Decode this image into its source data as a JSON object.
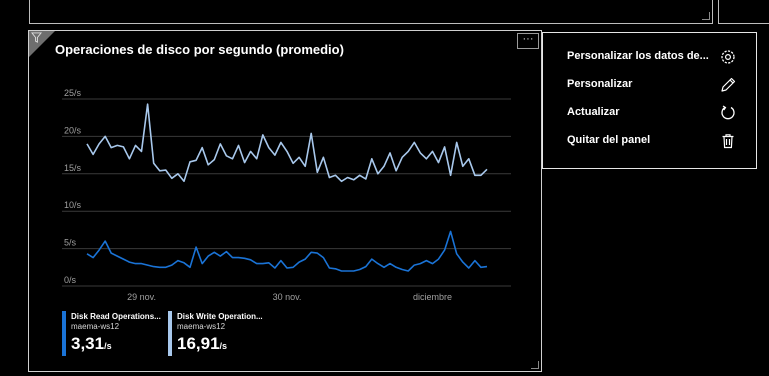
{
  "panel": {
    "title": "Operaciones de disco por segundo (promedio)",
    "more_label": "···",
    "icons": {
      "filter": "filter-icon",
      "more": "more-options-icon"
    }
  },
  "chart_data": {
    "type": "line",
    "y_ticks": [
      "25/s",
      "20/s",
      "15/s",
      "10/s",
      "5/s",
      "0/s"
    ],
    "ylim": [
      0,
      25
    ],
    "x_ticks": [
      {
        "label": "29 nov.",
        "index": 9
      },
      {
        "label": "30 nov.",
        "index": 33
      },
      {
        "label": "diciembre",
        "index": 57
      }
    ],
    "grid": true,
    "legend_position": "bottom-left",
    "series": [
      {
        "name": "Disk Read Operations...",
        "host": "maema-ws12",
        "summary_value": "3,31",
        "summary_unit": "/s",
        "color": "#1a73d6",
        "values": [
          4.3,
          3.8,
          4.8,
          6.0,
          4.4,
          4.0,
          3.6,
          3.2,
          3.0,
          3.0,
          2.8,
          2.6,
          2.5,
          2.5,
          2.8,
          3.4,
          3.1,
          2.5,
          5.2,
          3.0,
          4.0,
          4.5,
          4.0,
          4.6,
          3.8,
          3.8,
          3.7,
          3.5,
          3.0,
          3.0,
          3.1,
          2.4,
          3.4,
          2.4,
          2.5,
          3.2,
          3.6,
          4.5,
          4.4,
          3.8,
          2.4,
          2.3,
          2.0,
          2.0,
          2.0,
          2.2,
          2.6,
          3.6,
          3.0,
          2.5,
          3.0,
          2.5,
          2.2,
          2.0,
          2.8,
          3.0,
          3.4,
          3.0,
          3.6,
          4.8,
          7.3,
          4.3,
          3.2,
          2.4,
          3.4,
          2.5,
          2.6
        ]
      },
      {
        "name": "Disk Write Operation...",
        "host": "maema-ws12",
        "summary_value": "16,91",
        "summary_unit": "/s",
        "color": "#a8c8ec",
        "values": [
          19.0,
          17.6,
          19.0,
          20.0,
          18.5,
          18.8,
          18.6,
          17.0,
          18.8,
          18.0,
          24.3,
          16.4,
          15.4,
          15.5,
          14.4,
          15.0,
          14.0,
          16.6,
          16.8,
          18.5,
          16.2,
          16.9,
          19.0,
          17.4,
          17.0,
          18.8,
          16.5,
          18.0,
          17.0,
          20.2,
          18.5,
          17.5,
          19.2,
          18.0,
          16.4,
          17.2,
          16.0,
          20.4,
          15.2,
          17.2,
          14.5,
          14.8,
          14.0,
          14.5,
          14.2,
          14.8,
          14.3,
          17.0,
          15.0,
          16.0,
          17.8,
          15.4,
          17.2,
          18.0,
          19.2,
          17.8,
          17.0,
          18.0,
          16.5,
          18.6,
          14.8,
          19.2,
          16.0,
          17.0,
          14.8,
          14.8,
          15.6
        ]
      }
    ]
  },
  "menu": {
    "items": [
      {
        "label": "Personalizar los datos de...",
        "icon": "gear-icon"
      },
      {
        "label": "Personalizar",
        "icon": "pencil-icon"
      },
      {
        "label": "Actualizar",
        "icon": "refresh-icon"
      },
      {
        "label": "Quitar del panel",
        "icon": "trash-icon"
      }
    ]
  }
}
